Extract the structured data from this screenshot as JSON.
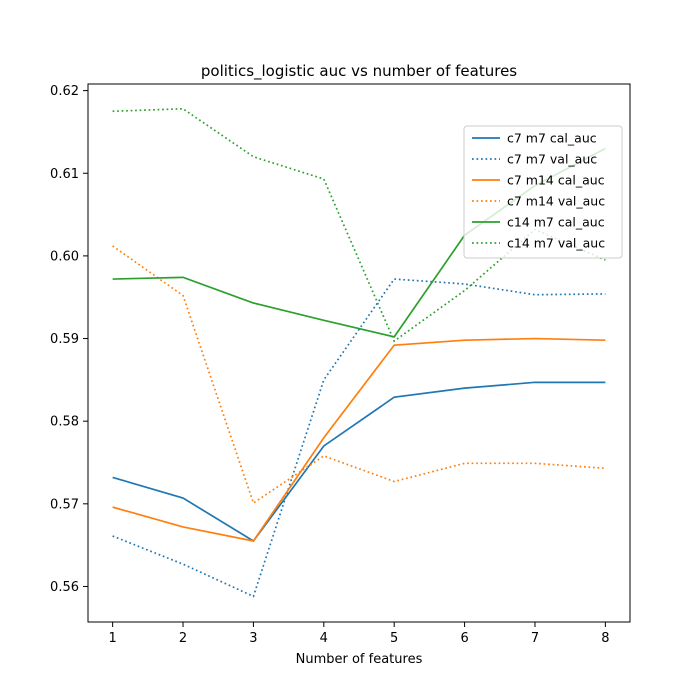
{
  "chart_data": {
    "type": "line",
    "title": "politics_logistic auc vs number of features",
    "xlabel": "Number of features",
    "ylabel": "",
    "x": [
      1,
      2,
      3,
      4,
      5,
      6,
      7,
      8
    ],
    "xlim": [
      0.65,
      8.35
    ],
    "ylim": [
      0.5557,
      0.6208
    ],
    "xticks": [
      1,
      2,
      3,
      4,
      5,
      6,
      7,
      8
    ],
    "yticks": [
      0.56,
      0.57,
      0.58,
      0.59,
      0.6,
      0.61,
      0.62
    ],
    "ytick_labels": [
      "0.56",
      "0.57",
      "0.58",
      "0.59",
      "0.60",
      "0.61",
      "0.62"
    ],
    "grid": false,
    "legend_position": "upper right",
    "series": [
      {
        "name": "c7 m7 cal_auc",
        "color": "#1f77b4",
        "style": "solid",
        "values": [
          0.5732,
          0.5707,
          0.5655,
          0.577,
          0.5829,
          0.584,
          0.5847,
          0.5847
        ]
      },
      {
        "name": "c7 m7 val_auc",
        "color": "#1f77b4",
        "style": "dotted",
        "values": [
          0.5661,
          0.5627,
          0.5588,
          0.585,
          0.5972,
          0.5966,
          0.5953,
          0.5954
        ]
      },
      {
        "name": "c7 m14 cal_auc",
        "color": "#ff7f0e",
        "style": "solid",
        "values": [
          0.5696,
          0.5672,
          0.5655,
          0.578,
          0.5892,
          0.5898,
          0.59,
          0.5898
        ]
      },
      {
        "name": "c7 m14 val_auc",
        "color": "#ff7f0e",
        "style": "dotted",
        "values": [
          0.6012,
          0.5952,
          0.5701,
          0.5758,
          0.5727,
          0.5749,
          0.5749,
          0.5743
        ]
      },
      {
        "name": "c14 m7 cal_auc",
        "color": "#2ca02c",
        "style": "solid",
        "values": [
          0.5972,
          0.5974,
          0.5943,
          0.5922,
          0.5902,
          0.6025,
          0.6085,
          0.613
        ]
      },
      {
        "name": "c14 m7 val_auc",
        "color": "#2ca02c",
        "style": "dotted",
        "values": [
          0.6175,
          0.6178,
          0.612,
          0.6093,
          0.5897,
          0.5958,
          0.6032,
          0.5995
        ]
      }
    ]
  }
}
